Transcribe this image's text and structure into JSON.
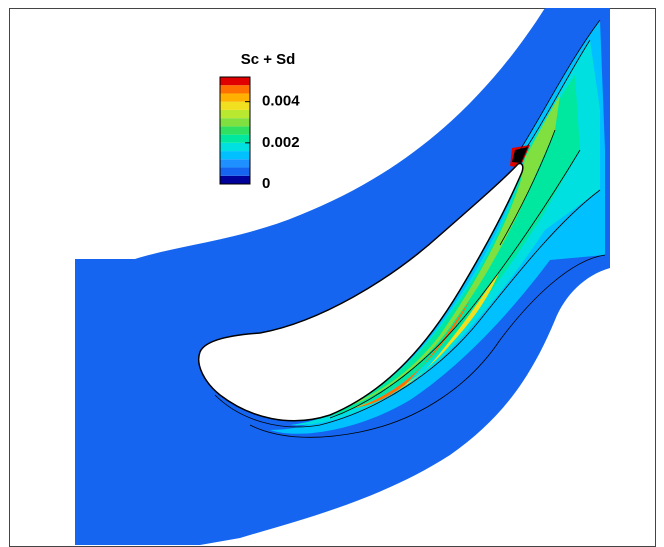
{
  "chart_data": {
    "type": "contour",
    "title": "Sc + Sd",
    "levels": [
      0,
      0.0004,
      0.0008,
      0.0012,
      0.0016,
      0.002,
      0.0024,
      0.0028,
      0.0032,
      0.0036,
      0.004,
      0.0044,
      0.0048,
      0.0052
    ],
    "colors": [
      "#00009a",
      "#1565f0",
      "#1e90ff",
      "#00c0ff",
      "#00e0e0",
      "#00e8a0",
      "#30e060",
      "#80e040",
      "#b8e830",
      "#f0e020",
      "#ffb000",
      "#ff7000",
      "#e00000"
    ],
    "cticks": [
      0,
      0.002,
      0.004
    ]
  }
}
